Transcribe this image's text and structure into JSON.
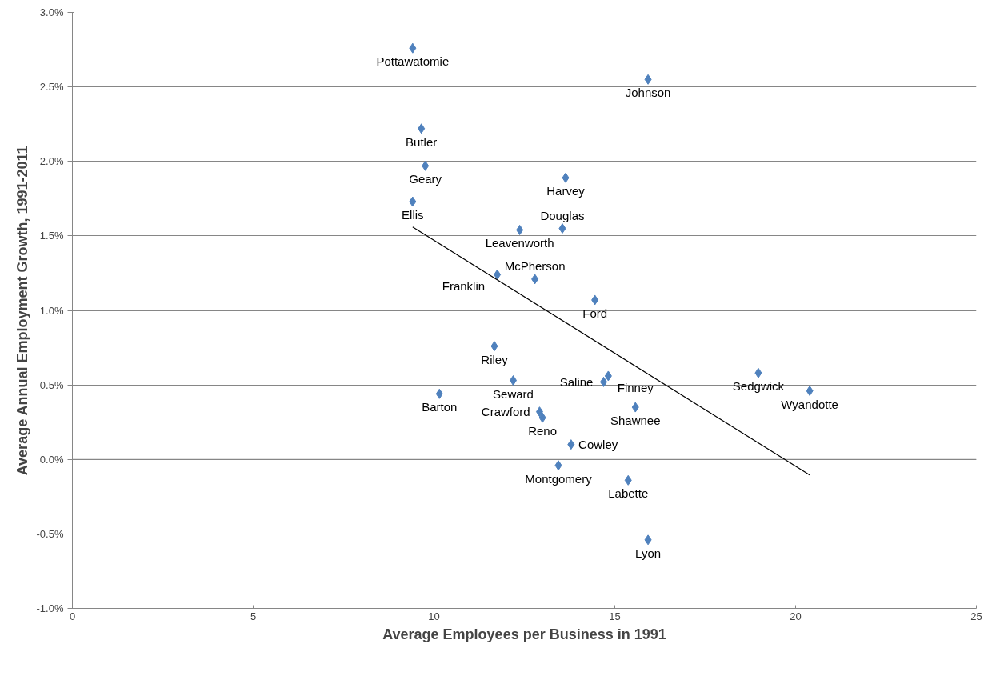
{
  "chart_data": {
    "type": "scatter",
    "xlabel": "Average Employees per Business in 1991",
    "ylabel": "Average Annual Employment Growth, 1991-2011",
    "xlim": [
      0,
      25
    ],
    "xticks": [
      0,
      5,
      10,
      15,
      20,
      25
    ],
    "ylim": [
      -1.0,
      3.0
    ],
    "yticks": [
      {
        "value": -1.0,
        "label": "-1.0%"
      },
      {
        "value": -0.5,
        "label": "-0.5%"
      },
      {
        "value": 0.0,
        "label": "0.0%"
      },
      {
        "value": 0.5,
        "label": "0.5%"
      },
      {
        "value": 1.0,
        "label": "1.0%"
      },
      {
        "value": 1.5,
        "label": "1.5%"
      },
      {
        "value": 2.0,
        "label": "2.0%"
      },
      {
        "value": 2.5,
        "label": "2.5%"
      },
      {
        "value": 3.0,
        "label": "3.0%"
      }
    ],
    "grid": "y",
    "series": [
      {
        "color": "#4f81bd",
        "marker": "diamond",
        "x": [
          9.41,
          15.92,
          9.65,
          9.76,
          9.41,
          13.64,
          12.37,
          13.55,
          11.75,
          12.79,
          14.45,
          11.67,
          12.19,
          10.15,
          14.82,
          14.69,
          12.92,
          13.0,
          15.57,
          13.79,
          13.44,
          15.37,
          15.92,
          18.97,
          20.39
        ],
        "values": [
          2.76,
          2.55,
          2.22,
          1.97,
          1.73,
          1.89,
          1.54,
          1.55,
          1.24,
          1.21,
          1.07,
          0.76,
          0.53,
          0.44,
          0.56,
          0.52,
          0.32,
          0.28,
          0.35,
          0.1,
          -0.04,
          -0.14,
          -0.54,
          0.58,
          0.46
        ],
        "value_labels": [
          "Pottawatomie",
          "Johnson",
          "Butler",
          "Geary",
          "Ellis",
          "Harvey",
          "Leavenworth",
          "Douglas",
          "Franklin",
          "McPherson",
          "Ford",
          "Riley",
          "Seward",
          "Barton",
          "Finney",
          "Saline",
          "Crawford",
          "Reno",
          "Shawnee",
          "Cowley",
          "Montgomery",
          "Labette",
          "Lyon",
          "Sedgwick",
          "Wyandotte"
        ]
      },
      {
        "type": "line",
        "color": "#000000",
        "x": [
          9.41,
          20.39
        ],
        "values": [
          1.56,
          -0.105
        ]
      }
    ]
  }
}
